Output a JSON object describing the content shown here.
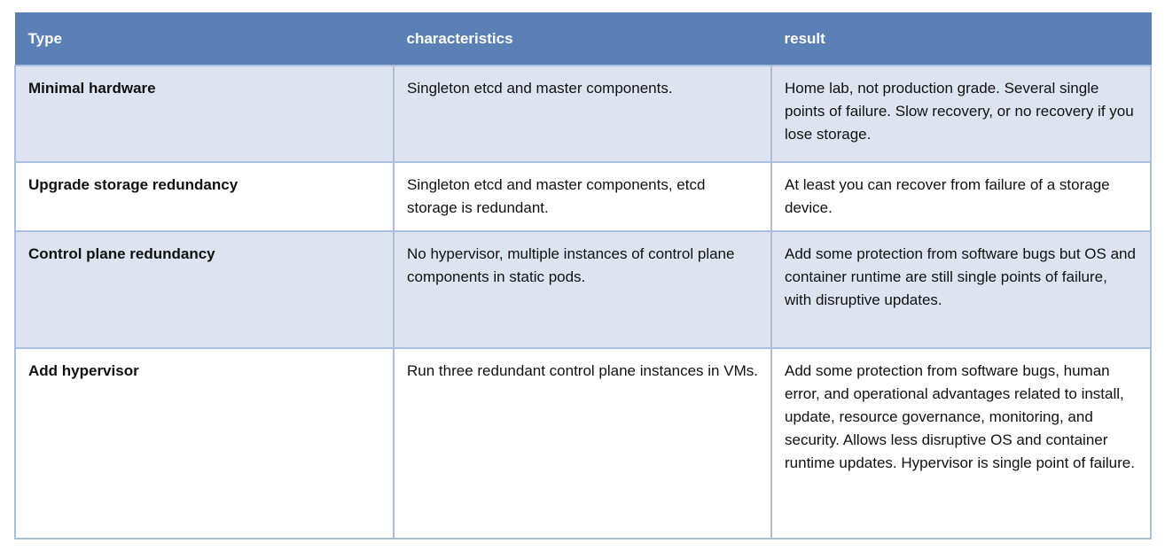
{
  "table": {
    "headers": [
      "Type",
      "characteristics",
      "result"
    ],
    "rows": [
      {
        "type": "Minimal hardware",
        "characteristics": "Singleton etcd and master components.",
        "result": "Home lab, not production grade. Several single points of failure. Slow recovery, or no recovery if you lose storage."
      },
      {
        "type": "Upgrade storage redundancy",
        "characteristics": "Singleton etcd and master components, etcd storage is redundant.",
        "result": "At least you can recover from failure of a storage device."
      },
      {
        "type": "Control plane redundancy",
        "characteristics": "No hypervisor, multiple instances of control plane components in static pods.",
        "result": "Add some protection from software bugs but OS and container runtime are still single points of failure, with disruptive updates."
      },
      {
        "type": "Add hypervisor",
        "characteristics": "Run three redundant control plane instances in VMs.",
        "result": "Add some protection from software bugs, human error, and operational advantages related to install, update, resource governance, monitoring, and security. Allows less disruptive OS and container runtime updates. Hypervisor is single point of failure."
      }
    ]
  },
  "colors": {
    "header_bg": "#5a80b6",
    "row_alt_bg": "#dde4f0",
    "border": "#a9bfdd"
  }
}
